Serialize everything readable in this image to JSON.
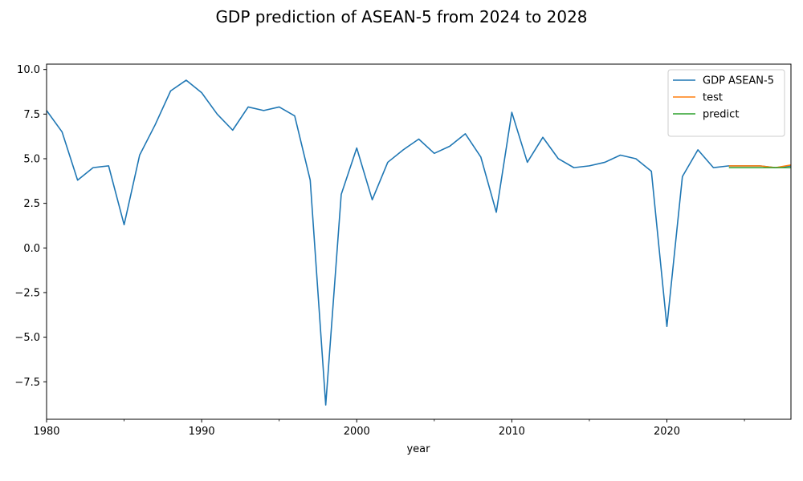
{
  "chart_data": {
    "type": "line",
    "title": "GDP prediction of ASEAN-5 from 2024 to 2028",
    "xlabel": "year",
    "ylabel": "",
    "xlim": [
      1980,
      2028
    ],
    "ylim": [
      -9.6,
      10.3
    ],
    "x_ticks": [
      1980,
      1990,
      2000,
      2010,
      2020
    ],
    "x_tick_labels": [
      "1980",
      "1990",
      "2000",
      "2010",
      "2020"
    ],
    "x_minor_ticks": [
      1985,
      1995,
      2005,
      2015,
      2025
    ],
    "y_ticks": [
      10.0,
      7.5,
      5.0,
      2.5,
      0.0,
      -2.5,
      -5.0,
      -7.5
    ],
    "y_tick_labels": [
      "10.0",
      "7.5",
      "5.0",
      "2.5",
      "0.0",
      "−2.5",
      "−5.0",
      "−7.5"
    ],
    "grid": false,
    "legend_position": "top-right",
    "series": [
      {
        "name": "GDP ASEAN-5",
        "color": "#1f77b4",
        "points": [
          [
            1980,
            7.7
          ],
          [
            1981,
            6.5
          ],
          [
            1982,
            3.8
          ],
          [
            1983,
            4.5
          ],
          [
            1984,
            4.6
          ],
          [
            1985,
            1.3
          ],
          [
            1986,
            5.2
          ],
          [
            1987,
            6.9
          ],
          [
            1988,
            8.8
          ],
          [
            1989,
            9.4
          ],
          [
            1990,
            8.7
          ],
          [
            1991,
            7.5
          ],
          [
            1992,
            6.6
          ],
          [
            1993,
            7.9
          ],
          [
            1994,
            7.7
          ],
          [
            1995,
            7.9
          ],
          [
            1996,
            7.4
          ],
          [
            1997,
            3.8
          ],
          [
            1998,
            -8.8
          ],
          [
            1999,
            3.0
          ],
          [
            2000,
            5.6
          ],
          [
            2001,
            2.7
          ],
          [
            2002,
            4.8
          ],
          [
            2003,
            5.5
          ],
          [
            2004,
            6.1
          ],
          [
            2005,
            5.3
          ],
          [
            2006,
            5.7
          ],
          [
            2007,
            6.4
          ],
          [
            2008,
            5.1
          ],
          [
            2009,
            2.0
          ],
          [
            2010,
            7.6
          ],
          [
            2011,
            4.8
          ],
          [
            2012,
            6.2
          ],
          [
            2013,
            5.0
          ],
          [
            2014,
            4.5
          ],
          [
            2015,
            4.6
          ],
          [
            2016,
            4.8
          ],
          [
            2017,
            5.2
          ],
          [
            2018,
            5.0
          ],
          [
            2019,
            4.3
          ],
          [
            2020,
            -4.4
          ],
          [
            2021,
            4.0
          ],
          [
            2022,
            5.5
          ],
          [
            2023,
            4.5
          ],
          [
            2024,
            4.6
          ],
          [
            2025,
            4.6
          ],
          [
            2026,
            4.6
          ],
          [
            2027,
            4.5
          ],
          [
            2028,
            4.6
          ]
        ]
      },
      {
        "name": "test",
        "color": "#ff7f0e",
        "points": [
          [
            2024,
            4.6
          ],
          [
            2025,
            4.6
          ],
          [
            2026,
            4.6
          ],
          [
            2027,
            4.5
          ],
          [
            2028,
            4.65
          ]
        ]
      },
      {
        "name": "predict",
        "color": "#2ca02c",
        "points": [
          [
            2024,
            4.5
          ],
          [
            2025,
            4.5
          ],
          [
            2026,
            4.5
          ],
          [
            2027,
            4.5
          ],
          [
            2028,
            4.5
          ]
        ]
      }
    ]
  }
}
